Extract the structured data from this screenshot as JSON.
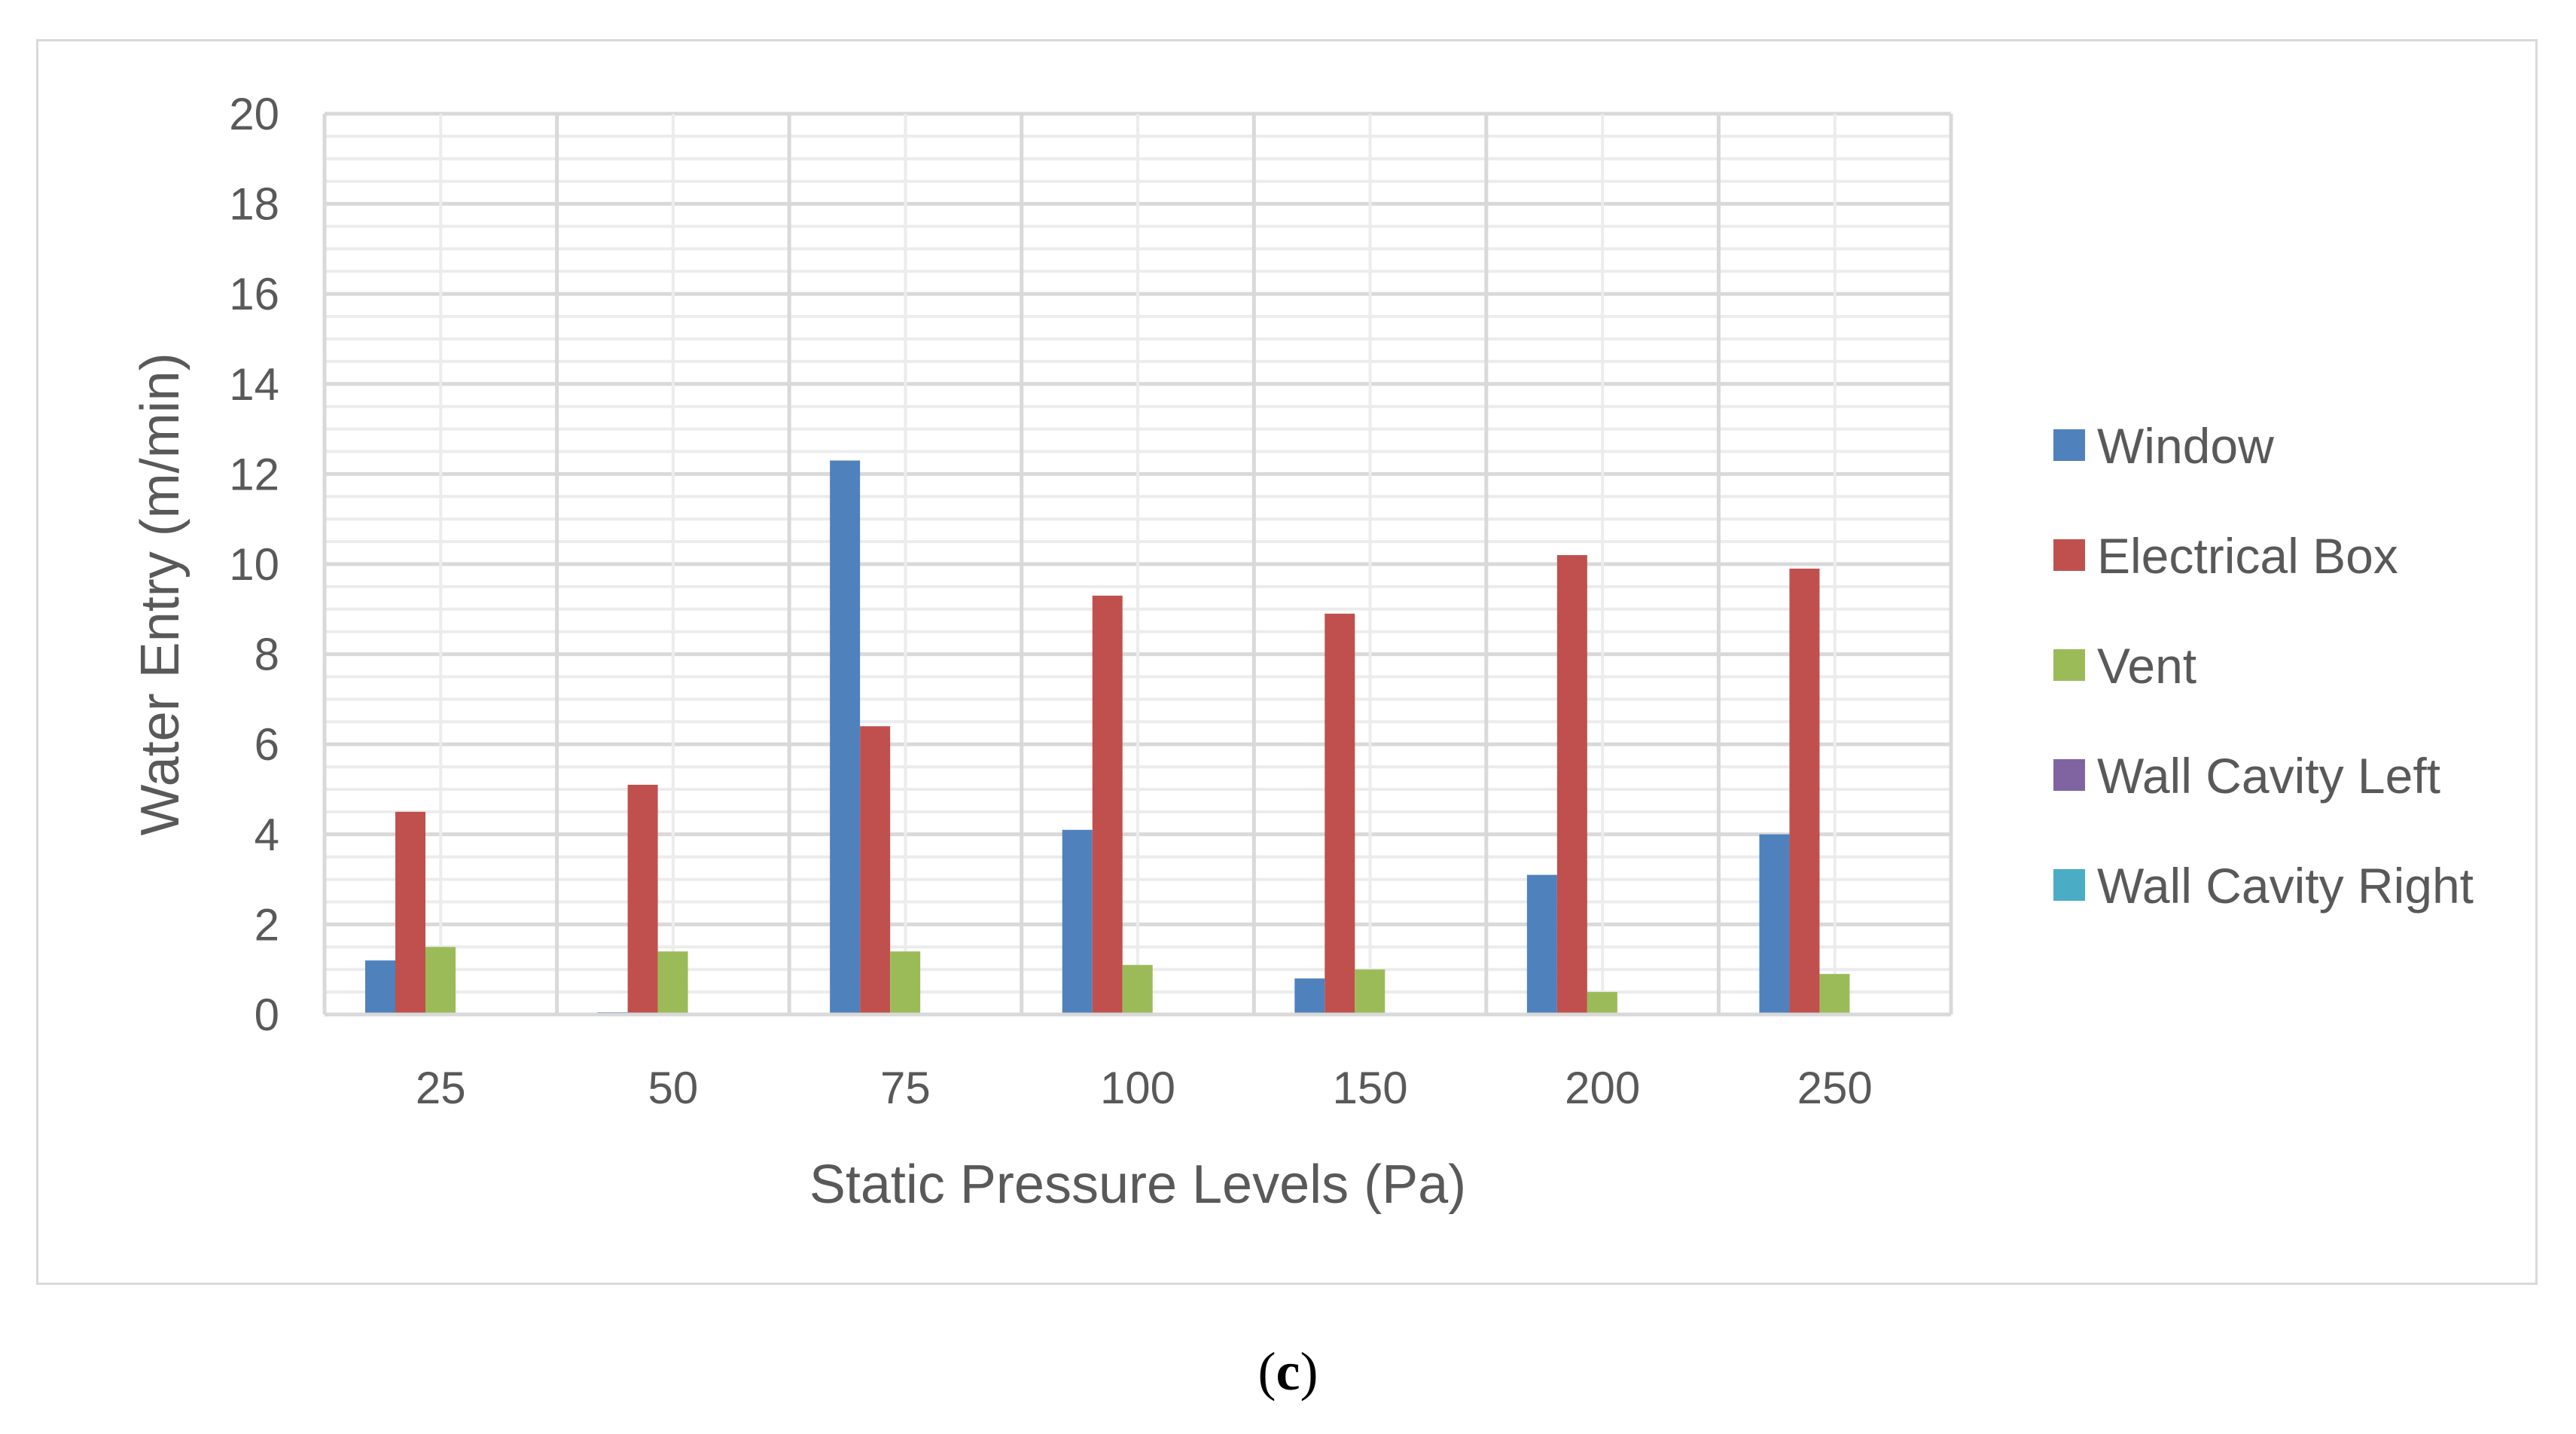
{
  "chart_data": {
    "type": "bar",
    "title": "",
    "xlabel": "Static Pressure Levels (Pa)",
    "ylabel": "Water Entry (m/min)",
    "ylim": [
      0,
      20
    ],
    "y_ticks": [
      0,
      2,
      4,
      6,
      8,
      10,
      12,
      14,
      16,
      18,
      20
    ],
    "minor_grid_step": 0.5,
    "grid": true,
    "legend_position": "right",
    "categories": [
      "25",
      "50",
      "75",
      "100",
      "150",
      "200",
      "250"
    ],
    "series": [
      {
        "name": "Window",
        "color": "#4F81BD",
        "values": [
          1.2,
          0.05,
          12.3,
          4.1,
          0.8,
          3.1,
          4.0
        ]
      },
      {
        "name": "Electrical Box",
        "color": "#C0504D",
        "values": [
          4.5,
          5.1,
          6.4,
          9.3,
          8.9,
          10.2,
          9.9
        ]
      },
      {
        "name": "Vent",
        "color": "#9BBB59",
        "values": [
          1.5,
          1.4,
          1.4,
          1.1,
          1.0,
          0.5,
          0.9
        ]
      },
      {
        "name": "Wall Cavity Left",
        "color": "#8064A2",
        "values": [
          0,
          0,
          0,
          0,
          0,
          0,
          0
        ]
      },
      {
        "name": "Wall Cavity Right",
        "color": "#4BACC6",
        "values": [
          0,
          0,
          0,
          0,
          0,
          0,
          0
        ]
      }
    ]
  },
  "caption": {
    "open": "(",
    "letter": "c",
    "close": ")"
  }
}
